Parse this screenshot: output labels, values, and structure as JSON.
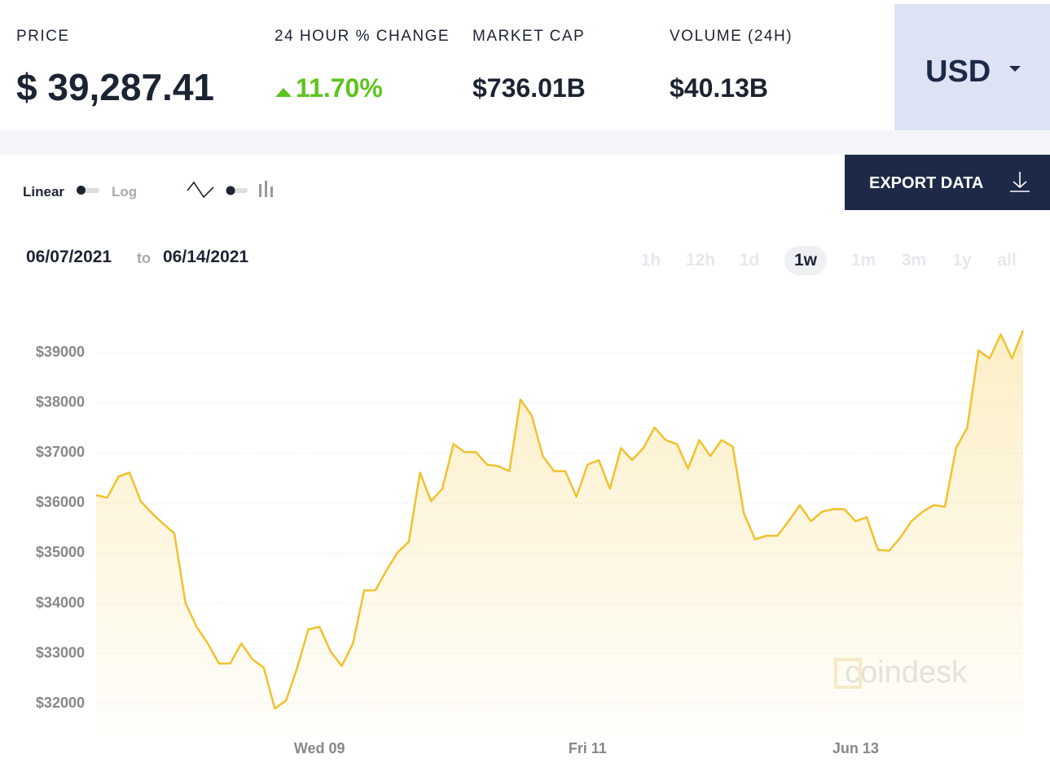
{
  "header": {
    "stats": [
      {
        "label": "PRICE",
        "value": "$ 39,287.41"
      },
      {
        "label": "24 HOUR % CHANGE",
        "value": "11.70%"
      },
      {
        "label": "MARKET CAP",
        "value": "$736.01B"
      },
      {
        "label": "VOLUME (24H)",
        "value": "$40.13B"
      }
    ],
    "currency": "USD"
  },
  "controls": {
    "linear": "Linear",
    "log": "Log",
    "export": "EXPORT DATA"
  },
  "date_range": {
    "from": "06/07/2021",
    "to_word": "to",
    "to": "06/14/2021"
  },
  "ranges": [
    "1h",
    "12h",
    "1d",
    "1w",
    "1m",
    "3m",
    "1y",
    "all"
  ],
  "watermark": "coindesk",
  "chart_data": {
    "type": "line",
    "categories": [
      null,
      null,
      null,
      null,
      null,
      null,
      null,
      null,
      null,
      null,
      null,
      null,
      null,
      null,
      null,
      null,
      null,
      null,
      null,
      null,
      "Wed 09",
      null,
      null,
      null,
      null,
      null,
      null,
      null,
      null,
      null,
      null,
      null,
      null,
      null,
      null,
      null,
      null,
      null,
      null,
      null,
      null,
      null,
      null,
      null,
      "Fri 11",
      null,
      null,
      null,
      null,
      null,
      null,
      null,
      null,
      null,
      null,
      null,
      null,
      null,
      null,
      null,
      null,
      null,
      null,
      null,
      null,
      null,
      null,
      null,
      "Jun 13",
      null,
      null,
      null,
      null,
      null,
      null,
      null,
      null,
      null,
      null,
      null,
      null,
      null,
      null,
      null
    ],
    "series": [
      {
        "name": "Price",
        "color": "#f2c12e",
        "values": [
          36160,
          36110,
          36530,
          36610,
          36040,
          35800,
          35590,
          35400,
          34010,
          33530,
          33200,
          32800,
          32800,
          33200,
          32880,
          32720,
          31900,
          32060,
          32710,
          33480,
          33530,
          33040,
          32750,
          33200,
          34260,
          34260,
          34660,
          35020,
          35230,
          36610,
          36040,
          36290,
          37180,
          37020,
          37020,
          36770,
          36740,
          36640,
          38070,
          37750,
          36940,
          36640,
          36640,
          36130,
          36770,
          36860,
          36290,
          37100,
          36860,
          37100,
          37510,
          37260,
          37180,
          36690,
          37260,
          36940,
          37260,
          37130,
          35800,
          35280,
          35350,
          35350,
          35640,
          35960,
          35640,
          35830,
          35880,
          35880,
          35640,
          35720,
          35070,
          35050,
          35310,
          35640,
          35830,
          35960,
          35930,
          37100,
          37510,
          39050,
          38890,
          39370,
          38890,
          39450
        ]
      }
    ],
    "ylim": [
      31400,
      39900
    ],
    "yticks": [
      {
        "value": 32000,
        "label": "$32000"
      },
      {
        "value": 33000,
        "label": "$33000"
      },
      {
        "value": 34000,
        "label": "$34000"
      },
      {
        "value": 35000,
        "label": "$35000"
      },
      {
        "value": 36000,
        "label": "$36000"
      },
      {
        "value": 37000,
        "label": "$37000"
      },
      {
        "value": 38000,
        "label": "$38000"
      },
      {
        "value": 39000,
        "label": "$39000"
      }
    ],
    "grid": true
  }
}
